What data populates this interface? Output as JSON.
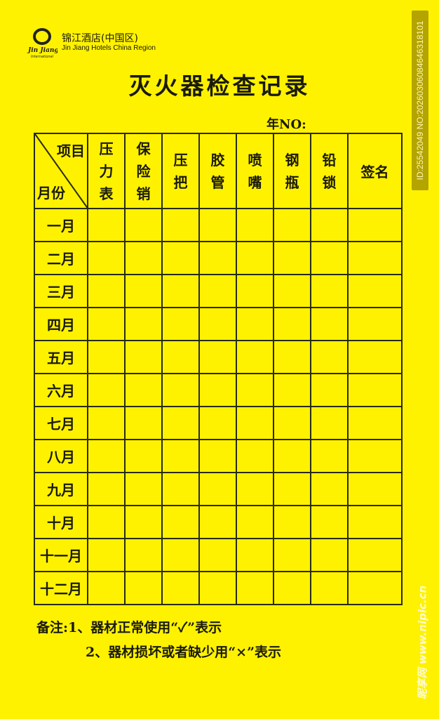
{
  "brand": {
    "name_cn": "锦江酒店(中国区)",
    "name_en": "Jin Jiang Hotels China Region",
    "logo_text": "Jin Jiang International"
  },
  "title": "灭火器检查记录",
  "year_no": "年NO:",
  "table": {
    "corner_top": "项目",
    "corner_bottom": "月份",
    "columns": [
      "压力表",
      "保险销",
      "压把",
      "胶管",
      "喷嘴",
      "钢瓶",
      "铅锁",
      "签名"
    ],
    "months": [
      "一月",
      "二月",
      "三月",
      "四月",
      "五月",
      "六月",
      "七月",
      "八月",
      "九月",
      "十月",
      "十一月",
      "十二月"
    ]
  },
  "notes": {
    "line1": "备注:1、器材正常使用“✓”表示",
    "line2": "2、器材损坏或者缺少用“×”表示"
  },
  "watermark": {
    "id": "ID:25542049 NO:20260306084646318101",
    "site": "昵享网 www.nipic.cn"
  }
}
